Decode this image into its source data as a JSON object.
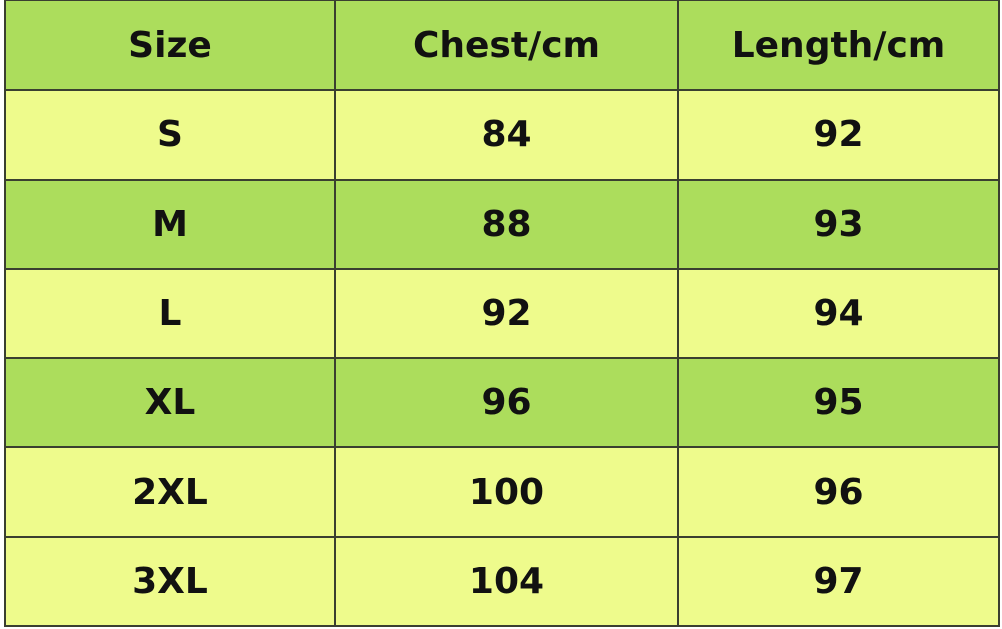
{
  "colors": {
    "header_bg": "#acdd5c",
    "dark_row_bg": "#acdd5c",
    "light_row_bg": "#eefb8c",
    "border": "#3a3f30"
  },
  "table": {
    "headers": [
      "Size",
      "Chest/cm",
      "Length/cm"
    ],
    "rows": [
      [
        "S",
        "84",
        "92"
      ],
      [
        "M",
        "88",
        "93"
      ],
      [
        "L",
        "92",
        "94"
      ],
      [
        "XL",
        "96",
        "95"
      ],
      [
        "2XL",
        "100",
        "96"
      ],
      [
        "3XL",
        "104",
        "97"
      ]
    ]
  }
}
